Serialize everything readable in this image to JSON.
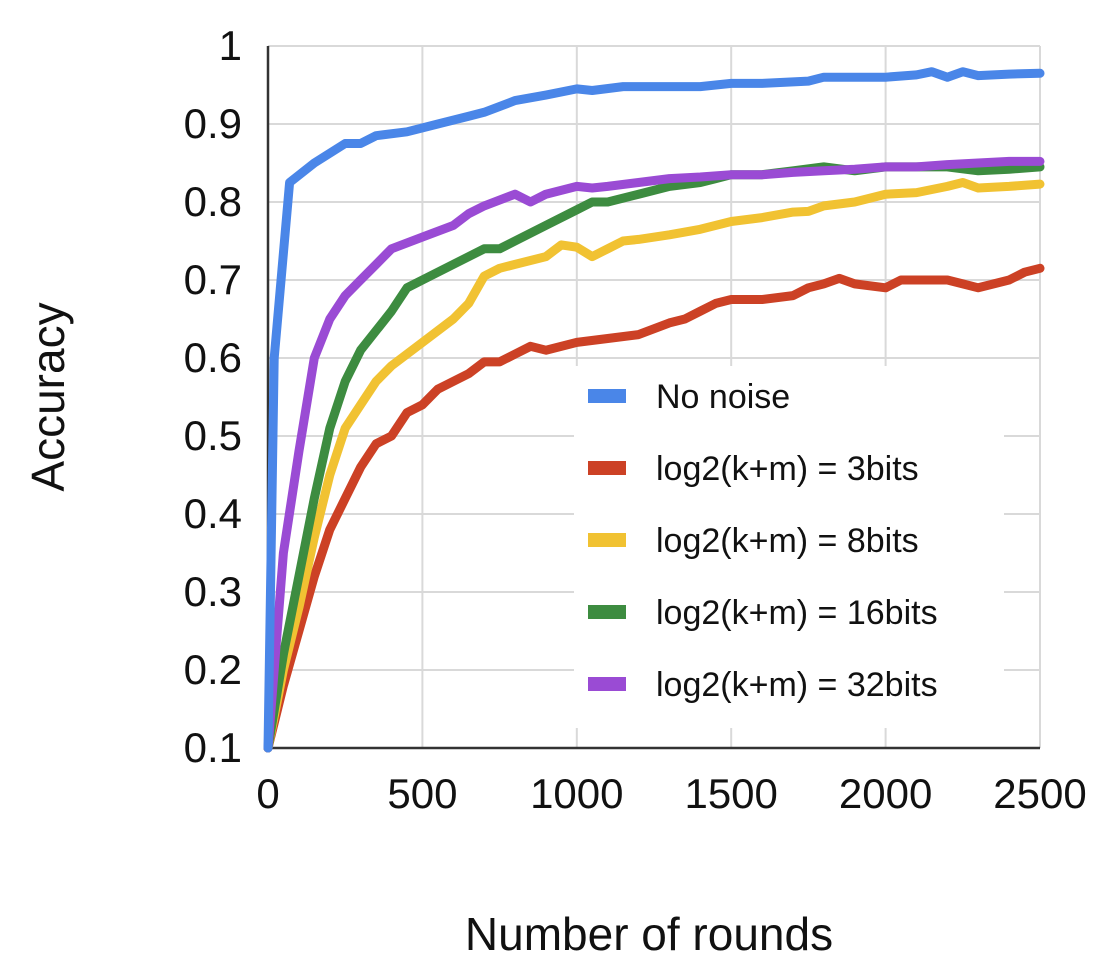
{
  "chart_data": {
    "type": "line",
    "title": "",
    "xlabel": "Number of rounds",
    "ylabel": "Accuracy",
    "xlim": [
      0,
      2500
    ],
    "ylim": [
      0.1,
      1.0
    ],
    "xticks": [
      0,
      500,
      1000,
      1500,
      2000,
      2500
    ],
    "xtick_labels": [
      "0",
      "500",
      "1000",
      "1500",
      "2000",
      "2500"
    ],
    "yticks": [
      0.1,
      0.2,
      0.3,
      0.4,
      0.5,
      0.6,
      0.7,
      0.8,
      0.9,
      1.0
    ],
    "ytick_labels": [
      "0.1",
      "0.2",
      "0.3",
      "0.4",
      "0.5",
      "0.6",
      "0.7",
      "0.8",
      "0.9",
      "1"
    ],
    "grid": true,
    "legend_position": "bottom-right",
    "series": [
      {
        "name": "No noise",
        "color": "#4a86e8",
        "x": [
          0,
          20,
          70,
          150,
          250,
          300,
          350,
          450,
          550,
          650,
          700,
          800,
          900,
          1000,
          1050,
          1150,
          1300,
          1400,
          1500,
          1600,
          1750,
          1800,
          1900,
          2000,
          2100,
          2150,
          2200,
          2250,
          2300,
          2400,
          2500
        ],
        "y": [
          0.1,
          0.6,
          0.825,
          0.85,
          0.875,
          0.875,
          0.885,
          0.89,
          0.9,
          0.91,
          0.915,
          0.93,
          0.937,
          0.945,
          0.943,
          0.948,
          0.948,
          0.948,
          0.952,
          0.952,
          0.955,
          0.96,
          0.96,
          0.96,
          0.963,
          0.967,
          0.96,
          0.967,
          0.962,
          0.964,
          0.965
        ]
      },
      {
        "name": "log2(k+m) = 3bits",
        "color": "#cc4125",
        "x": [
          0,
          50,
          100,
          150,
          200,
          250,
          300,
          350,
          400,
          450,
          500,
          550,
          600,
          650,
          700,
          750,
          800,
          850,
          900,
          1000,
          1100,
          1200,
          1300,
          1350,
          1400,
          1450,
          1500,
          1600,
          1700,
          1750,
          1800,
          1850,
          1900,
          2000,
          2050,
          2100,
          2200,
          2250,
          2300,
          2350,
          2400,
          2450,
          2500
        ],
        "y": [
          0.1,
          0.18,
          0.25,
          0.32,
          0.38,
          0.42,
          0.46,
          0.49,
          0.5,
          0.53,
          0.54,
          0.56,
          0.57,
          0.58,
          0.595,
          0.595,
          0.605,
          0.615,
          0.61,
          0.62,
          0.625,
          0.63,
          0.645,
          0.65,
          0.66,
          0.67,
          0.675,
          0.675,
          0.68,
          0.69,
          0.695,
          0.702,
          0.695,
          0.69,
          0.7,
          0.7,
          0.7,
          0.695,
          0.69,
          0.695,
          0.7,
          0.71,
          0.715
        ]
      },
      {
        "name": "log2(k+m) = 8bits",
        "color": "#f1c232",
        "x": [
          0,
          50,
          100,
          150,
          200,
          250,
          300,
          350,
          400,
          500,
          600,
          650,
          700,
          750,
          800,
          900,
          950,
          1000,
          1050,
          1100,
          1150,
          1200,
          1300,
          1400,
          1500,
          1600,
          1700,
          1750,
          1800,
          1900,
          2000,
          2100,
          2200,
          2250,
          2300,
          2400,
          2500
        ],
        "y": [
          0.1,
          0.2,
          0.28,
          0.37,
          0.45,
          0.51,
          0.54,
          0.57,
          0.59,
          0.62,
          0.65,
          0.67,
          0.705,
          0.715,
          0.72,
          0.73,
          0.745,
          0.742,
          0.73,
          0.74,
          0.75,
          0.752,
          0.758,
          0.765,
          0.775,
          0.78,
          0.787,
          0.788,
          0.795,
          0.8,
          0.81,
          0.812,
          0.82,
          0.825,
          0.818,
          0.82,
          0.823
        ]
      },
      {
        "name": "log2(k+m) = 16bits",
        "color": "#3d8c40",
        "x": [
          0,
          50,
          100,
          150,
          200,
          250,
          300,
          400,
          450,
          500,
          600,
          700,
          750,
          800,
          900,
          1000,
          1050,
          1100,
          1200,
          1300,
          1400,
          1450,
          1500,
          1600,
          1700,
          1800,
          1900,
          2000,
          2100,
          2200,
          2300,
          2400,
          2500
        ],
        "y": [
          0.1,
          0.22,
          0.32,
          0.42,
          0.51,
          0.57,
          0.61,
          0.66,
          0.69,
          0.7,
          0.72,
          0.74,
          0.74,
          0.75,
          0.77,
          0.79,
          0.8,
          0.8,
          0.81,
          0.82,
          0.825,
          0.83,
          0.835,
          0.835,
          0.84,
          0.845,
          0.84,
          0.845,
          0.845,
          0.845,
          0.84,
          0.842,
          0.845
        ]
      },
      {
        "name": "log2(k+m) = 32bits",
        "color": "#9a4bd4",
        "x": [
          0,
          50,
          100,
          150,
          200,
          250,
          300,
          350,
          400,
          500,
          600,
          650,
          700,
          800,
          850,
          900,
          1000,
          1050,
          1100,
          1200,
          1300,
          1400,
          1500,
          1600,
          1700,
          1800,
          1900,
          2000,
          2100,
          2200,
          2300,
          2400,
          2500
        ],
        "y": [
          0.1,
          0.35,
          0.48,
          0.6,
          0.65,
          0.68,
          0.7,
          0.72,
          0.74,
          0.755,
          0.77,
          0.785,
          0.795,
          0.81,
          0.8,
          0.81,
          0.82,
          0.818,
          0.82,
          0.825,
          0.83,
          0.832,
          0.835,
          0.835,
          0.838,
          0.84,
          0.842,
          0.845,
          0.845,
          0.848,
          0.85,
          0.852,
          0.852
        ]
      }
    ]
  }
}
